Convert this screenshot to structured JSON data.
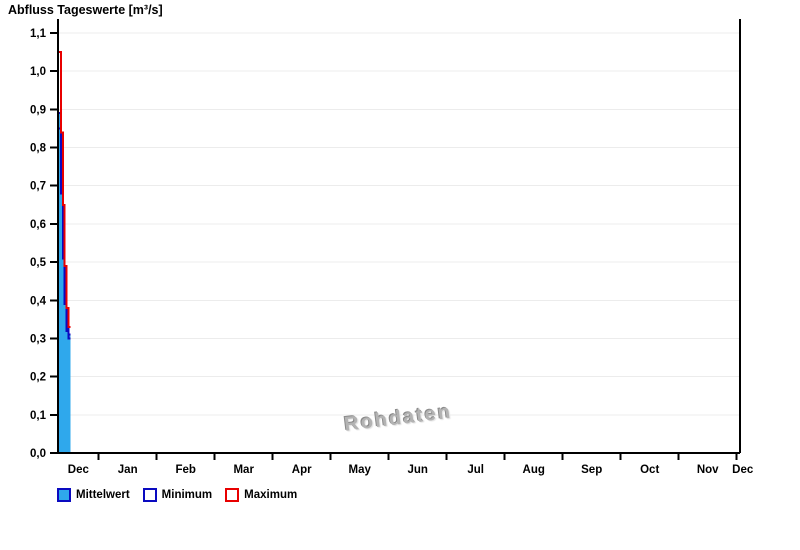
{
  "chart_data": {
    "type": "area",
    "title": "Abfluss Tageswerte [m³/s]",
    "watermark": "Rohdaten",
    "ylim": [
      0.0,
      1.1
    ],
    "ytick_values": [
      0.0,
      0.1,
      0.2,
      0.3,
      0.4,
      0.5,
      0.6,
      0.7,
      0.8,
      0.9,
      1.0,
      1.1
    ],
    "ytick_labels": [
      "0,0",
      "0,1",
      "0,2",
      "0,3",
      "0,4",
      "0,5",
      "0,6",
      "0,7",
      "0,8",
      "0,9",
      "1,0",
      "1,1"
    ],
    "month_labels": [
      "Dec",
      "Jan",
      "Feb",
      "Mar",
      "Apr",
      "May",
      "Jun",
      "Jul",
      "Aug",
      "Sep",
      "Oct",
      "Nov",
      "Dec"
    ],
    "x_days_total": 365,
    "grid_on": true,
    "grid_color": "#ececec",
    "axis_color": "#000000",
    "series": [
      {
        "name": "Mittelwert",
        "kind": "area-step",
        "day_start": 0.6,
        "values": [
          0.89,
          0.72,
          0.55,
          0.42,
          0.34,
          0.31
        ],
        "fill": "#2fa8ec",
        "line": "#0a0ac0"
      },
      {
        "name": "Minimum",
        "kind": "step",
        "day_start": 0.6,
        "values": [
          0.85,
          0.68,
          0.51,
          0.39,
          0.32,
          0.3
        ],
        "line": "#0a0ac0"
      },
      {
        "name": "Maximum",
        "kind": "step",
        "day_start": 0.6,
        "values": [
          1.05,
          0.84,
          0.65,
          0.49,
          0.38,
          0.33
        ],
        "line": "#e80000"
      }
    ],
    "legend_position": "bottom-left"
  },
  "legend": {
    "items": [
      {
        "label": "Mittelwert",
        "swatch_fill": "#2fa8ec",
        "swatch_border": "#0a0ac0"
      },
      {
        "label": "Minimum",
        "swatch_fill": "#ffffff",
        "swatch_border": "#0a0ac0"
      },
      {
        "label": "Maximum",
        "swatch_fill": "#ffffff",
        "swatch_border": "#e80000"
      }
    ]
  }
}
